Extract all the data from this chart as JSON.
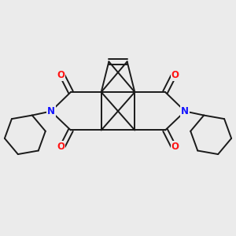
{
  "background_color": "#ebebeb",
  "bond_color": "#1a1a1a",
  "N_color": "#1414ff",
  "O_color": "#ff1414",
  "bond_width": 1.4,
  "figsize": [
    3.0,
    3.0
  ],
  "dpi": 100,
  "xlim": [
    -3.8,
    3.8
  ],
  "ylim": [
    -3.2,
    3.2
  ]
}
